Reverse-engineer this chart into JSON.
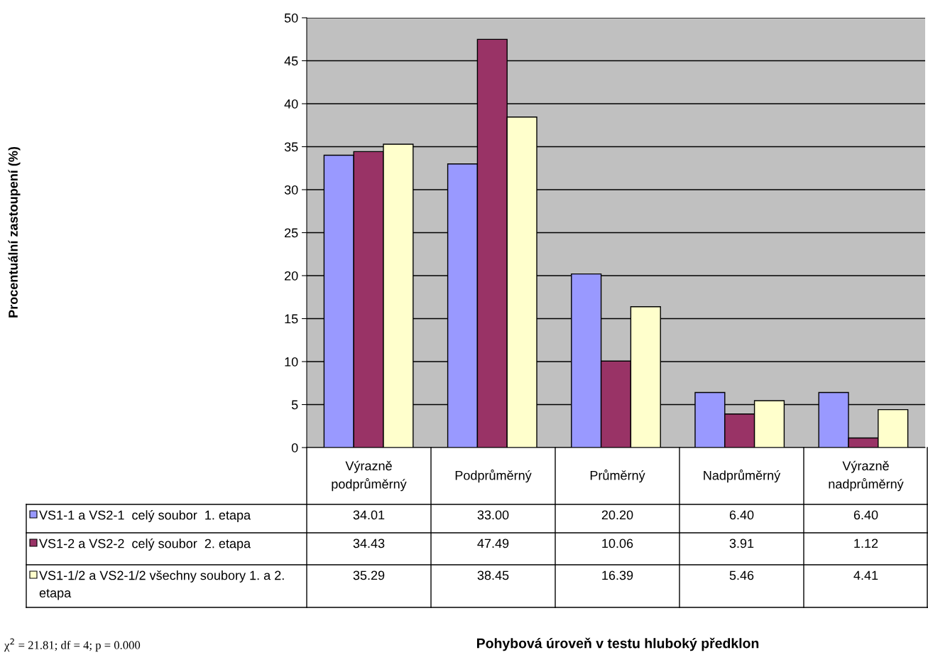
{
  "chart_data": {
    "type": "bar",
    "categories": [
      "Výrazně podprůměrný",
      "Podprůměrný",
      "Průměrný",
      "Nadprůměrný",
      "Výrazně nadprůměrný"
    ],
    "series": [
      {
        "name": "VS1-1 a VS2-1  celý soubor  1. etapa",
        "color": "#9999ff",
        "values": [
          34.01,
          33.0,
          20.2,
          6.4,
          6.4
        ],
        "value_labels": [
          "34.01",
          "33.00",
          "20.20",
          "6.40",
          "6.40"
        ]
      },
      {
        "name": "VS1-2 a VS2-2  celý soubor  2. etapa",
        "color": "#993366",
        "values": [
          34.43,
          47.49,
          10.06,
          3.91,
          1.12
        ],
        "value_labels": [
          "34.43",
          "47.49",
          "10.06",
          "3.91",
          "1.12"
        ]
      },
      {
        "name": "VS1-1/2 a VS2-1/2 všechny soubory 1. a 2. etapa",
        "color": "#ffffcc",
        "values": [
          35.29,
          38.45,
          16.39,
          5.46,
          4.41
        ],
        "value_labels": [
          "35.29",
          "38.45",
          "16.39",
          "5.46",
          "4.41"
        ]
      }
    ],
    "ylim": [
      0,
      50
    ],
    "yticks": [
      0,
      5,
      10,
      15,
      20,
      25,
      30,
      35,
      40,
      45,
      50
    ],
    "grid": "y",
    "legend": "bottom left",
    "annotations": [
      "Procentuální zastoupení (%)",
      "Pohybová úroveň v testu hluboký předklon",
      "χ$^{2}$ = 21.81; df = 4; p = 0.000"
    ]
  }
}
